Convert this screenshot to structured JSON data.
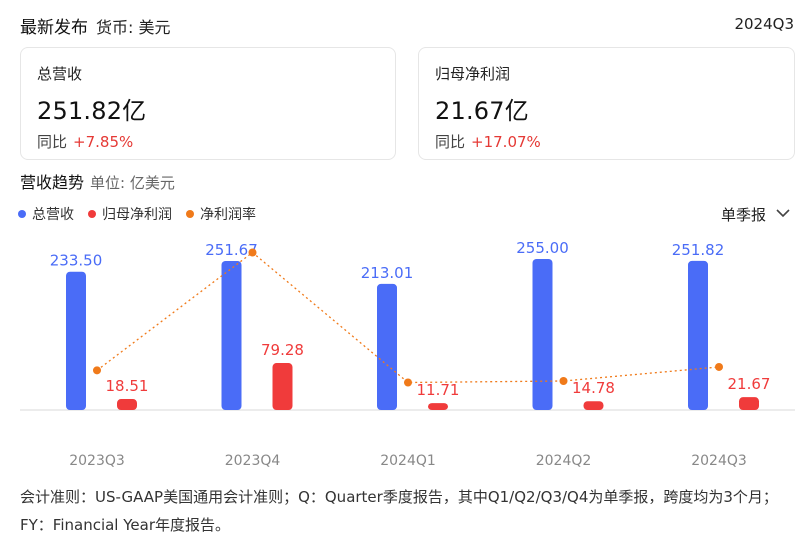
{
  "header": {
    "title": "最新发布",
    "currency": "货币: 美元",
    "period": "2024Q3"
  },
  "cards": [
    {
      "title": "总营收",
      "value": "251.82亿",
      "yoy_label": "同比",
      "yoy_value": "+7.85%"
    },
    {
      "title": "归母净利润",
      "value": "21.67亿",
      "yoy_label": "同比",
      "yoy_value": "+17.07%"
    }
  ],
  "trend": {
    "title": "营收趋势",
    "unit": "单位: 亿美元"
  },
  "legend": [
    {
      "label": "总营收",
      "color": "#4a6cf7"
    },
    {
      "label": "归母净利润",
      "color": "#f03b3b"
    },
    {
      "label": "净利润率",
      "color": "#f07a1a"
    }
  ],
  "period_select": {
    "value": "单季报"
  },
  "chart_data": {
    "type": "bar",
    "categories": [
      "2023Q3",
      "2023Q4",
      "2024Q1",
      "2024Q2",
      "2024Q3"
    ],
    "series": [
      {
        "name": "总营收",
        "type": "bar",
        "color": "#4a6cf7",
        "values": [
          233.5,
          251.67,
          213.01,
          255.0,
          251.82
        ]
      },
      {
        "name": "归母净利润",
        "type": "bar",
        "color": "#f03b3b",
        "values": [
          18.51,
          79.28,
          11.71,
          14.78,
          21.67
        ]
      },
      {
        "name": "净利润率",
        "type": "line",
        "style": "dotted",
        "color": "#f07a1a",
        "values": [
          7.93,
          31.5,
          5.5,
          5.8,
          8.61
        ]
      }
    ],
    "value_labels": {
      "总营收": [
        "233.50",
        "251.67",
        "213.01",
        "255.00",
        "251.82"
      ],
      "归母净利润": [
        "18.51",
        "79.28",
        "11.71",
        "14.78",
        "21.67"
      ]
    }
  },
  "footnote": "会计准则：US-GAAP美国通用会计准则；Q：Quarter季度报告，其中Q1/Q2/Q3/Q4为单季报，跨度均为3个月；FY：Financial Year年度报告。"
}
